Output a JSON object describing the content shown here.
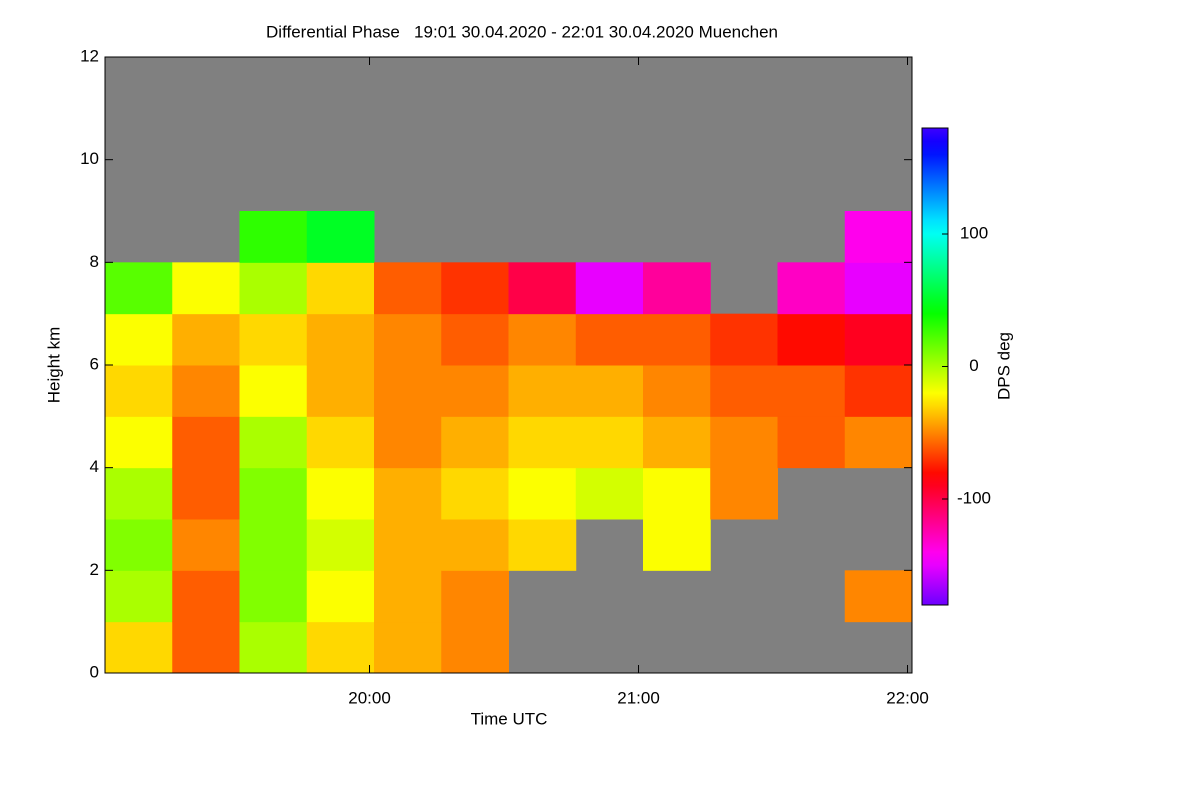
{
  "chart_data": {
    "type": "heatmap",
    "title": "Differential Phase   19:01 30.04.2020 - 22:01 30.04.2020 Muenchen",
    "x_label": "Time UTC",
    "y_label": "Height km",
    "colorbar_label": "DPS deg",
    "x_edges": [
      1,
      16,
      31,
      46,
      61,
      76,
      91,
      106,
      121,
      136,
      151,
      166,
      181
    ],
    "y_edges": [
      0,
      1,
      2,
      3,
      4,
      5,
      6,
      7,
      8,
      9,
      10,
      11,
      12
    ],
    "values": [
      [
        -30,
        0,
        10,
        0,
        -20,
        -30,
        -20,
        20,
        null,
        null,
        null,
        null
      ],
      [
        -60,
        -60,
        -50,
        -60,
        -60,
        -50,
        -40,
        -20,
        null,
        null,
        null,
        null
      ],
      [
        0,
        10,
        10,
        10,
        0,
        -20,
        -30,
        0,
        30,
        null,
        null,
        null
      ],
      [
        -30,
        -20,
        -10,
        -20,
        -30,
        -40,
        -40,
        -30,
        50,
        null,
        null,
        null
      ],
      [
        -40,
        -40,
        -40,
        -40,
        -50,
        -50,
        -50,
        -60,
        null,
        null,
        null,
        null
      ],
      [
        -50,
        -50,
        -40,
        -30,
        -40,
        -50,
        -60,
        -70,
        null,
        null,
        null,
        null
      ],
      [
        null,
        null,
        -30,
        -20,
        -30,
        -40,
        -50,
        -100,
        null,
        null,
        null,
        null
      ],
      [
        null,
        null,
        null,
        -10,
        -30,
        -40,
        -60,
        -150,
        null,
        null,
        null,
        null
      ],
      [
        null,
        null,
        -20,
        -20,
        -40,
        -50,
        -60,
        -120,
        null,
        null,
        null,
        null
      ],
      [
        null,
        null,
        null,
        -50,
        -50,
        -60,
        -70,
        null,
        null,
        null,
        null,
        null
      ],
      [
        null,
        null,
        null,
        null,
        -60,
        -60,
        -80,
        -130,
        null,
        null,
        null,
        null
      ],
      [
        null,
        -50,
        null,
        null,
        -50,
        -70,
        -90,
        -150,
        -140,
        null,
        null,
        null
      ]
    ],
    "missing_color": "#808080",
    "xlim": [
      1,
      181
    ],
    "xticks": [
      {
        "value": 60,
        "label": "20:00"
      },
      {
        "value": 120,
        "label": "21:00"
      },
      {
        "value": 180,
        "label": "22:00"
      }
    ],
    "ylim": [
      0,
      12
    ],
    "yticks": [
      0,
      2,
      4,
      6,
      8,
      10,
      12
    ],
    "clim": [
      -180,
      180
    ],
    "cticks": [
      -100,
      0,
      100
    ]
  }
}
